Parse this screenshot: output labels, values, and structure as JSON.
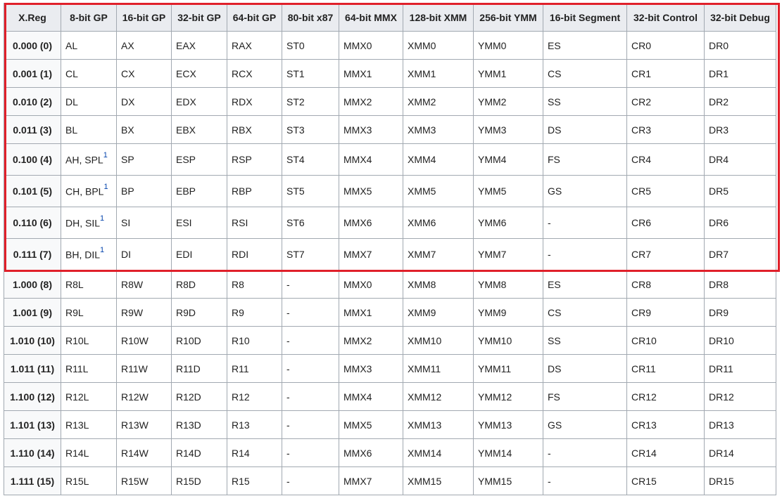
{
  "headers": [
    "X.Reg",
    "8-bit GP",
    "16-bit GP",
    "32-bit GP",
    "64-bit GP",
    "80-bit x87",
    "64-bit MMX",
    "128-bit XMM",
    "256-bit YMM",
    "16-bit Segment",
    "32-bit Control",
    "32-bit Debug"
  ],
  "rows": [
    {
      "reg": "0.000 (0)",
      "gp8": "AL",
      "note": "",
      "gp16": "AX",
      "gp32": "EAX",
      "gp64": "RAX",
      "x87": "ST0",
      "mmx": "MMX0",
      "xmm": "XMM0",
      "ymm": "YMM0",
      "seg": "ES",
      "ctrl": "CR0",
      "dbg": "DR0"
    },
    {
      "reg": "0.001 (1)",
      "gp8": "CL",
      "note": "",
      "gp16": "CX",
      "gp32": "ECX",
      "gp64": "RCX",
      "x87": "ST1",
      "mmx": "MMX1",
      "xmm": "XMM1",
      "ymm": "YMM1",
      "seg": "CS",
      "ctrl": "CR1",
      "dbg": "DR1"
    },
    {
      "reg": "0.010 (2)",
      "gp8": "DL",
      "note": "",
      "gp16": "DX",
      "gp32": "EDX",
      "gp64": "RDX",
      "x87": "ST2",
      "mmx": "MMX2",
      "xmm": "XMM2",
      "ymm": "YMM2",
      "seg": "SS",
      "ctrl": "CR2",
      "dbg": "DR2"
    },
    {
      "reg": "0.011 (3)",
      "gp8": "BL",
      "note": "",
      "gp16": "BX",
      "gp32": "EBX",
      "gp64": "RBX",
      "x87": "ST3",
      "mmx": "MMX3",
      "xmm": "XMM3",
      "ymm": "YMM3",
      "seg": "DS",
      "ctrl": "CR3",
      "dbg": "DR3"
    },
    {
      "reg": "0.100 (4)",
      "gp8": "AH, SPL",
      "note": "1",
      "gp16": "SP",
      "gp32": "ESP",
      "gp64": "RSP",
      "x87": "ST4",
      "mmx": "MMX4",
      "xmm": "XMM4",
      "ymm": "YMM4",
      "seg": "FS",
      "ctrl": "CR4",
      "dbg": "DR4"
    },
    {
      "reg": "0.101 (5)",
      "gp8": "CH, BPL",
      "note": "1",
      "gp16": "BP",
      "gp32": "EBP",
      "gp64": "RBP",
      "x87": "ST5",
      "mmx": "MMX5",
      "xmm": "XMM5",
      "ymm": "YMM5",
      "seg": "GS",
      "ctrl": "CR5",
      "dbg": "DR5"
    },
    {
      "reg": "0.110 (6)",
      "gp8": "DH, SIL",
      "note": "1",
      "gp16": "SI",
      "gp32": "ESI",
      "gp64": "RSI",
      "x87": "ST6",
      "mmx": "MMX6",
      "xmm": "XMM6",
      "ymm": "YMM6",
      "seg": "-",
      "ctrl": "CR6",
      "dbg": "DR6"
    },
    {
      "reg": "0.111 (7)",
      "gp8": "BH, DIL",
      "note": "1",
      "gp16": "DI",
      "gp32": "EDI",
      "gp64": "RDI",
      "x87": "ST7",
      "mmx": "MMX7",
      "xmm": "XMM7",
      "ymm": "YMM7",
      "seg": "-",
      "ctrl": "CR7",
      "dbg": "DR7"
    },
    {
      "reg": "1.000 (8)",
      "gp8": "R8L",
      "note": "",
      "gp16": "R8W",
      "gp32": "R8D",
      "gp64": "R8",
      "x87": "-",
      "mmx": "MMX0",
      "xmm": "XMM8",
      "ymm": "YMM8",
      "seg": "ES",
      "ctrl": "CR8",
      "dbg": "DR8"
    },
    {
      "reg": "1.001 (9)",
      "gp8": "R9L",
      "note": "",
      "gp16": "R9W",
      "gp32": "R9D",
      "gp64": "R9",
      "x87": "-",
      "mmx": "MMX1",
      "xmm": "XMM9",
      "ymm": "YMM9",
      "seg": "CS",
      "ctrl": "CR9",
      "dbg": "DR9"
    },
    {
      "reg": "1.010 (10)",
      "gp8": "R10L",
      "note": "",
      "gp16": "R10W",
      "gp32": "R10D",
      "gp64": "R10",
      "x87": "-",
      "mmx": "MMX2",
      "xmm": "XMM10",
      "ymm": "YMM10",
      "seg": "SS",
      "ctrl": "CR10",
      "dbg": "DR10"
    },
    {
      "reg": "1.011 (11)",
      "gp8": "R11L",
      "note": "",
      "gp16": "R11W",
      "gp32": "R11D",
      "gp64": "R11",
      "x87": "-",
      "mmx": "MMX3",
      "xmm": "XMM11",
      "ymm": "YMM11",
      "seg": "DS",
      "ctrl": "CR11",
      "dbg": "DR11"
    },
    {
      "reg": "1.100 (12)",
      "gp8": "R12L",
      "note": "",
      "gp16": "R12W",
      "gp32": "R12D",
      "gp64": "R12",
      "x87": "-",
      "mmx": "MMX4",
      "xmm": "XMM12",
      "ymm": "YMM12",
      "seg": "FS",
      "ctrl": "CR12",
      "dbg": "DR12"
    },
    {
      "reg": "1.101 (13)",
      "gp8": "R13L",
      "note": "",
      "gp16": "R13W",
      "gp32": "R13D",
      "gp64": "R13",
      "x87": "-",
      "mmx": "MMX5",
      "xmm": "XMM13",
      "ymm": "YMM13",
      "seg": "GS",
      "ctrl": "CR13",
      "dbg": "DR13"
    },
    {
      "reg": "1.110 (14)",
      "gp8": "R14L",
      "note": "",
      "gp16": "R14W",
      "gp32": "R14D",
      "gp64": "R14",
      "x87": "-",
      "mmx": "MMX6",
      "xmm": "XMM14",
      "ymm": "YMM14",
      "seg": "-",
      "ctrl": "CR14",
      "dbg": "DR14"
    },
    {
      "reg": "1.111 (15)",
      "gp8": "R15L",
      "note": "",
      "gp16": "R15W",
      "gp32": "R15D",
      "gp64": "R15",
      "x87": "-",
      "mmx": "MMX7",
      "xmm": "XMM15",
      "ymm": "YMM15",
      "seg": "-",
      "ctrl": "CR15",
      "dbg": "DR15"
    }
  ],
  "colors": {
    "highlight_border": "#e0202a",
    "footnote_link": "#0645ad",
    "header_bg": "#eaecf0",
    "cell_border": "#a2a9b1"
  }
}
